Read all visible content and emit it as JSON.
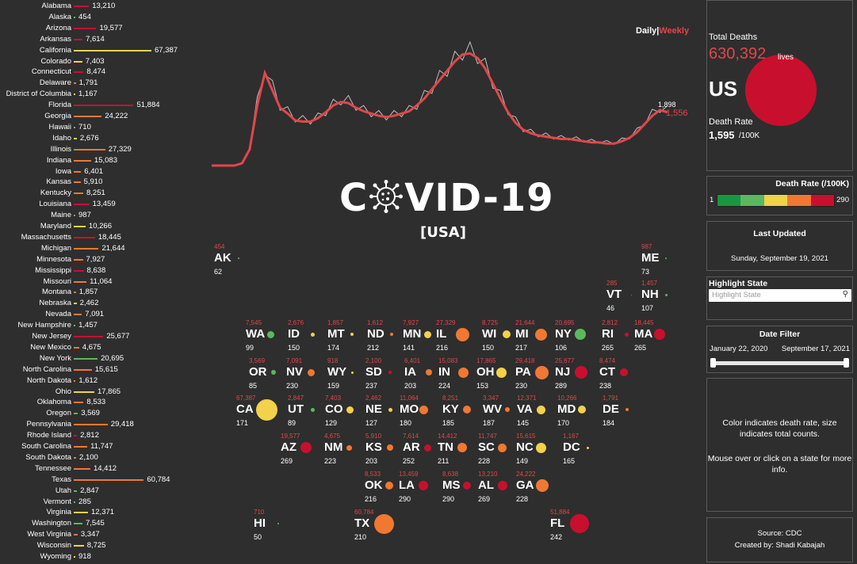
{
  "toggle": {
    "daily": "Daily",
    "sep": "|",
    "weekly": "Weekly"
  },
  "title": {
    "pre": "C",
    "post": "VID-19",
    "sub": "[USA]"
  },
  "trend_labels": {
    "daily_last": "1,898",
    "weekly_last": "1,556"
  },
  "panels": {
    "total_label": "Total Deaths",
    "total_value": "630,392",
    "total_unit": "lives",
    "country": "US",
    "rate_label": "Death Rate",
    "rate_value": "1,595",
    "rate_unit": "/100K",
    "legend_title": "Death Rate (/100K)",
    "legend_min": "1",
    "legend_max": "290",
    "updated_title": "Last Updated",
    "updated_value": "Sunday, September 19, 2021",
    "highlight_title": "Highlight State",
    "highlight_placeholder": "Highlight State",
    "date_title": "Date Filter",
    "date_start": "January 22, 2020",
    "date_end": "September 17, 2021",
    "info1": "Color indicates death rate, size indicates total counts.",
    "info2": "Mouse over or click on a state for more info.",
    "source": "Source: CDC",
    "credit": "Created by: Shadi Kabajah"
  },
  "colors": {
    "rate_scale": [
      "#1a9641",
      "#5cb85c",
      "#f2d14b",
      "#f07832",
      "#c8102e"
    ],
    "trend_daily": "#bfbfbf",
    "trend_weekly": "#e0474c",
    "accent": "#e0474c"
  },
  "chart_data": [
    {
      "type": "bar",
      "title": "",
      "categories": [
        "Alabama",
        "Alaska",
        "Arizona",
        "Arkansas",
        "California",
        "Colorado",
        "Connecticut",
        "Delaware",
        "District of Columbia",
        "Florida",
        "Georgia",
        "Hawaii",
        "Idaho",
        "Illinois",
        "Indiana",
        "Iowa",
        "Kansas",
        "Kentucky",
        "Louisiana",
        "Maine",
        "Maryland",
        "Massachusetts",
        "Michigan",
        "Minnesota",
        "Mississippi",
        "Missouri",
        "Montana",
        "Nebraska",
        "Nevada",
        "New Hampshire",
        "New Jersey",
        "New Mexico",
        "New York",
        "North Carolina",
        "North Dakota",
        "Ohio",
        "Oklahoma",
        "Oregon",
        "Pennsylvania",
        "Rhode Island",
        "South Carolina",
        "South Dakota",
        "Tennessee",
        "Texas",
        "Utah",
        "Vermont",
        "Virginia",
        "Washington",
        "West Virginia",
        "Wisconsin",
        "Wyoming"
      ],
      "values": [
        13210,
        454,
        19577,
        7614,
        67387,
        7403,
        8474,
        1791,
        1167,
        51884,
        24222,
        710,
        2676,
        27329,
        15083,
        6401,
        5910,
        8251,
        13459,
        987,
        10266,
        18445,
        21644,
        7927,
        8638,
        11064,
        1857,
        2462,
        7091,
        1457,
        25677,
        4675,
        20695,
        15615,
        1612,
        17865,
        8533,
        3569,
        29418,
        2812,
        11747,
        2100,
        14412,
        60784,
        2847,
        285,
        12371,
        7545,
        3347,
        8725,
        918
      ],
      "labels": [
        "13,210",
        "454",
        "19,577",
        "7,614",
        "67,387",
        "7,403",
        "8,474",
        "1,791",
        "1,167",
        "51,884",
        "24,222",
        "710",
        "2,676",
        "27,329",
        "15,083",
        "6,401",
        "5,910",
        "8,251",
        "13,459",
        "987",
        "10,266",
        "18,445",
        "21,644",
        "7,927",
        "8,638",
        "11,064",
        "1,857",
        "2,462",
        "7,091",
        "1,457",
        "25,677",
        "4,675",
        "20,695",
        "15,615",
        "1,612",
        "17,865",
        "8,533",
        "3,569",
        "29,418",
        "2,812",
        "11,747",
        "2,100",
        "14,412",
        "60,784",
        "2,847",
        "285",
        "12,371",
        "7,545",
        "3,347",
        "8,725",
        "918"
      ],
      "colors": [
        "#c8102e",
        "#5cb85c",
        "#c8102e",
        "#c8102e",
        "#f2d14b",
        "#f2d14b",
        "#c8102e",
        "#f07832",
        "#f2d14b",
        "#c8102e",
        "#f07832",
        "#5cb85c",
        "#f2d14b",
        "#f07832",
        "#f07832",
        "#f07832",
        "#f07832",
        "#f07832",
        "#c8102e",
        "#5cb85c",
        "#f2d14b",
        "#c8102e",
        "#f07832",
        "#f07832",
        "#c8102e",
        "#f07832",
        "#f07832",
        "#f2d14b",
        "#f07832",
        "#5cb85c",
        "#c8102e",
        "#f07832",
        "#5cb85c",
        "#f07832",
        "#f07832",
        "#f2d14b",
        "#f07832",
        "#5cb85c",
        "#f07832",
        "#c8102e",
        "#f07832",
        "#f07832",
        "#f07832",
        "#f07832",
        "#5cb85c",
        "#5cb85c",
        "#f2d14b",
        "#5cb85c",
        "#f07832",
        "#f2d14b",
        "#f2d14b"
      ]
    },
    {
      "type": "line",
      "title": "",
      "series": [
        {
          "values": [
            0,
            0,
            0,
            0,
            2,
            15,
            55,
            85,
            68,
            52,
            47,
            41,
            40,
            39,
            42,
            47,
            53,
            57,
            56,
            52,
            48,
            46,
            44,
            43,
            44,
            46,
            48,
            53,
            60,
            68,
            76,
            84,
            92,
            98,
            100,
            95,
            86,
            73,
            60,
            48,
            39,
            32,
            29,
            27,
            26,
            25,
            24,
            24,
            23,
            22,
            21,
            21,
            20,
            20,
            22,
            25,
            30,
            38,
            45,
            50,
            48
          ]
        },
        {
          "values": [
            0,
            0,
            0,
            0,
            2,
            14,
            52,
            80,
            65,
            50,
            45,
            39,
            38,
            38,
            41,
            46,
            52,
            55,
            54,
            50,
            47,
            45,
            43,
            42,
            43,
            45,
            47,
            52,
            58,
            66,
            74,
            82,
            90,
            96,
            97,
            93,
            84,
            71,
            58,
            46,
            37,
            31,
            28,
            26,
            25,
            24,
            23,
            23,
            22,
            21,
            20,
            20,
            19,
            19,
            21,
            24,
            29,
            36,
            43,
            48,
            46
          ]
        }
      ]
    },
    {
      "type": "scatter",
      "title": "",
      "states": [
        {
          "ab": "AK",
          "deaths": "454",
          "rate": "62",
          "color": "#5cb85c",
          "size": 2
        },
        {
          "ab": "ME",
          "deaths": "987",
          "rate": "73",
          "color": "#5cb85c",
          "size": 2
        },
        {
          "ab": "VT",
          "deaths": "285",
          "rate": "46",
          "color": "#5cb85c",
          "size": 1
        },
        {
          "ab": "NH",
          "deaths": "1,457",
          "rate": "107",
          "color": "#5cb85c",
          "size": 3
        },
        {
          "ab": "WA",
          "deaths": "7,545",
          "rate": "99",
          "color": "#5cb85c",
          "size": 9
        },
        {
          "ab": "ID",
          "deaths": "2,676",
          "rate": "150",
          "color": "#f2d14b",
          "size": 5
        },
        {
          "ab": "MT",
          "deaths": "1,857",
          "rate": "174",
          "color": "#f2d14b",
          "size": 4
        },
        {
          "ab": "ND",
          "deaths": "1,612",
          "rate": "212",
          "color": "#f07832",
          "size": 4
        },
        {
          "ab": "MN",
          "deaths": "7,927",
          "rate": "141",
          "color": "#f2d14b",
          "size": 9
        },
        {
          "ab": "IL",
          "deaths": "27,329",
          "rate": "216",
          "color": "#f07832",
          "size": 17
        },
        {
          "ab": "WI",
          "deaths": "8,725",
          "rate": "150",
          "color": "#f2d14b",
          "size": 10
        },
        {
          "ab": "MI",
          "deaths": "21,644",
          "rate": "217",
          "color": "#f07832",
          "size": 15
        },
        {
          "ab": "NY",
          "deaths": "20,695",
          "rate": "106",
          "color": "#5cb85c",
          "size": 14
        },
        {
          "ab": "RI",
          "deaths": "2,812",
          "rate": "265",
          "color": "#c8102e",
          "size": 5
        },
        {
          "ab": "MA",
          "deaths": "18,445",
          "rate": "265",
          "color": "#c8102e",
          "size": 14
        },
        {
          "ab": "OR",
          "deaths": "3,569",
          "rate": "85",
          "color": "#5cb85c",
          "size": 6
        },
        {
          "ab": "NV",
          "deaths": "7,091",
          "rate": "230",
          "color": "#f07832",
          "size": 9
        },
        {
          "ab": "WY",
          "deaths": "918",
          "rate": "159",
          "color": "#f2d14b",
          "size": 3
        },
        {
          "ab": "SD",
          "deaths": "2,100",
          "rate": "237",
          "color": "#c8102e",
          "size": 4
        },
        {
          "ab": "IA",
          "deaths": "6,401",
          "rate": "203",
          "color": "#f07832",
          "size": 8
        },
        {
          "ab": "IN",
          "deaths": "15,083",
          "rate": "224",
          "color": "#f07832",
          "size": 13
        },
        {
          "ab": "OH",
          "deaths": "17,865",
          "rate": "153",
          "color": "#f2d14b",
          "size": 13
        },
        {
          "ab": "PA",
          "deaths": "29,418",
          "rate": "230",
          "color": "#f07832",
          "size": 17
        },
        {
          "ab": "NJ",
          "deaths": "25,677",
          "rate": "289",
          "color": "#c8102e",
          "size": 16
        },
        {
          "ab": "CT",
          "deaths": "8,474",
          "rate": "238",
          "color": "#c8102e",
          "size": 10
        },
        {
          "ab": "CA",
          "deaths": "67,387",
          "rate": "171",
          "color": "#f2d14b",
          "size": 27
        },
        {
          "ab": "UT",
          "deaths": "2,847",
          "rate": "89",
          "color": "#5cb85c",
          "size": 5
        },
        {
          "ab": "CO",
          "deaths": "7,403",
          "rate": "129",
          "color": "#f2d14b",
          "size": 9
        },
        {
          "ab": "NE",
          "deaths": "2,462",
          "rate": "127",
          "color": "#f2d14b",
          "size": 5
        },
        {
          "ab": "MO",
          "deaths": "11,064",
          "rate": "180",
          "color": "#f07832",
          "size": 11
        },
        {
          "ab": "KY",
          "deaths": "8,251",
          "rate": "185",
          "color": "#f07832",
          "size": 10
        },
        {
          "ab": "WV",
          "deaths": "3,347",
          "rate": "187",
          "color": "#f07832",
          "size": 6
        },
        {
          "ab": "VA",
          "deaths": "12,371",
          "rate": "145",
          "color": "#f2d14b",
          "size": 11
        },
        {
          "ab": "MD",
          "deaths": "10,266",
          "rate": "170",
          "color": "#f2d14b",
          "size": 10
        },
        {
          "ab": "DE",
          "deaths": "1,791",
          "rate": "184",
          "color": "#f07832",
          "size": 4
        },
        {
          "ab": "AZ",
          "deaths": "19,577",
          "rate": "269",
          "color": "#c8102e",
          "size": 14
        },
        {
          "ab": "NM",
          "deaths": "4,675",
          "rate": "223",
          "color": "#f07832",
          "size": 7
        },
        {
          "ab": "KS",
          "deaths": "5,910",
          "rate": "203",
          "color": "#f07832",
          "size": 8
        },
        {
          "ab": "AR",
          "deaths": "7,614",
          "rate": "252",
          "color": "#c8102e",
          "size": 9
        },
        {
          "ab": "TN",
          "deaths": "14,412",
          "rate": "211",
          "color": "#f07832",
          "size": 12
        },
        {
          "ab": "SC",
          "deaths": "11,747",
          "rate": "228",
          "color": "#f07832",
          "size": 11
        },
        {
          "ab": "NC",
          "deaths": "15,615",
          "rate": "149",
          "color": "#f2d14b",
          "size": 13
        },
        {
          "ab": "DC",
          "deaths": "1,167",
          "rate": "165",
          "color": "#f2d14b",
          "size": 3
        },
        {
          "ab": "OK",
          "deaths": "8,533",
          "rate": "216",
          "color": "#f07832",
          "size": 10
        },
        {
          "ab": "LA",
          "deaths": "13,459",
          "rate": "290",
          "color": "#c8102e",
          "size": 12
        },
        {
          "ab": "MS",
          "deaths": "8,638",
          "rate": "290",
          "color": "#c8102e",
          "size": 10
        },
        {
          "ab": "AL",
          "deaths": "13,210",
          "rate": "269",
          "color": "#c8102e",
          "size": 12
        },
        {
          "ab": "GA",
          "deaths": "24,222",
          "rate": "228",
          "color": "#f07832",
          "size": 16
        },
        {
          "ab": "HI",
          "deaths": "710",
          "rate": "50",
          "color": "#5cb85c",
          "size": 2
        },
        {
          "ab": "TX",
          "deaths": "60,784",
          "rate": "210",
          "color": "#f07832",
          "size": 25
        },
        {
          "ab": "FL",
          "deaths": "51,884",
          "rate": "242",
          "color": "#c8102e",
          "size": 24
        }
      ]
    }
  ]
}
